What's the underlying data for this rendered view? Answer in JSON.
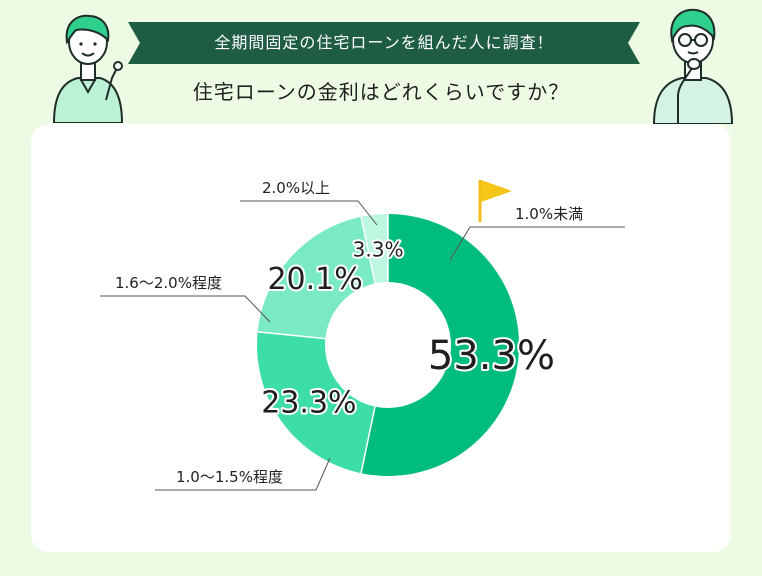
{
  "header": {
    "banner": "全期間固定の住宅ローンを組んだ人に調査！",
    "question": "住宅ローンの金利はどれくらいですか？"
  },
  "colors": {
    "banner": "#1e5c43",
    "background": "#eefbe4",
    "segments": [
      "#00bd7d",
      "#3ddda7",
      "#7aeac2",
      "#bdf7e0"
    ]
  },
  "chart_data": {
    "type": "pie",
    "variant": "donut",
    "title": "",
    "categories": [
      "1.0%未満",
      "1.0〜1.5%程度",
      "1.6〜2.0%程度",
      "2.0%以上"
    ],
    "values": [
      53.3,
      23.3,
      20.1,
      3.3
    ],
    "value_labels": [
      "53.3%",
      "23.3%",
      "20.1%",
      "3.3%"
    ],
    "unit": "%"
  }
}
